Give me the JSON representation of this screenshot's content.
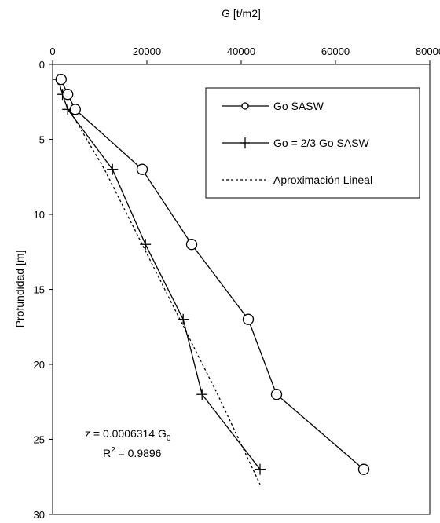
{
  "chart_data": {
    "type": "line",
    "xlabel": "G [t/m2]",
    "ylabel": "Profundidad [m]",
    "xlim": [
      0,
      80000
    ],
    "ylim": [
      0,
      30
    ],
    "y_inverted": true,
    "x_axis_position": "top",
    "xticks": [
      "0",
      "20000",
      "40000",
      "60000",
      "80000"
    ],
    "yticks": [
      "0",
      "5",
      "10",
      "15",
      "20",
      "25",
      "30"
    ],
    "grid": false,
    "legend_position": "top-right",
    "series": [
      {
        "name": "Go SASW",
        "marker": "circle",
        "line": "solid",
        "points": [
          {
            "x": 1800,
            "y": 1
          },
          {
            "x": 3200,
            "y": 2
          },
          {
            "x": 4800,
            "y": 3
          },
          {
            "x": 19000,
            "y": 7
          },
          {
            "x": 29500,
            "y": 12
          },
          {
            "x": 41500,
            "y": 17
          },
          {
            "x": 47500,
            "y": 22
          },
          {
            "x": 66000,
            "y": 27
          }
        ]
      },
      {
        "name": "Go = 2/3 Go SASW",
        "marker": "plus",
        "line": "solid",
        "points": [
          {
            "x": 1200,
            "y": 1
          },
          {
            "x": 2100,
            "y": 2
          },
          {
            "x": 3200,
            "y": 3
          },
          {
            "x": 12700,
            "y": 7
          },
          {
            "x": 19700,
            "y": 12
          },
          {
            "x": 27700,
            "y": 17
          },
          {
            "x": 31700,
            "y": 22
          },
          {
            "x": 44000,
            "y": 27
          }
        ]
      },
      {
        "name": "Aproximación Lineal",
        "marker": "none",
        "line": "dotted",
        "points": [
          {
            "x": 3500,
            "y": 3
          },
          {
            "x": 11000,
            "y": 7
          },
          {
            "x": 19000,
            "y": 12
          },
          {
            "x": 27000,
            "y": 17
          },
          {
            "x": 35000,
            "y": 22
          },
          {
            "x": 44000,
            "y": 28
          }
        ]
      }
    ],
    "annotation": {
      "line1_prefix": "z = 0.0006314 G",
      "line1_sub": "0",
      "line2_prefix": "R",
      "line2_sup": "2",
      "line2_suffix": " = 0.9896"
    }
  }
}
